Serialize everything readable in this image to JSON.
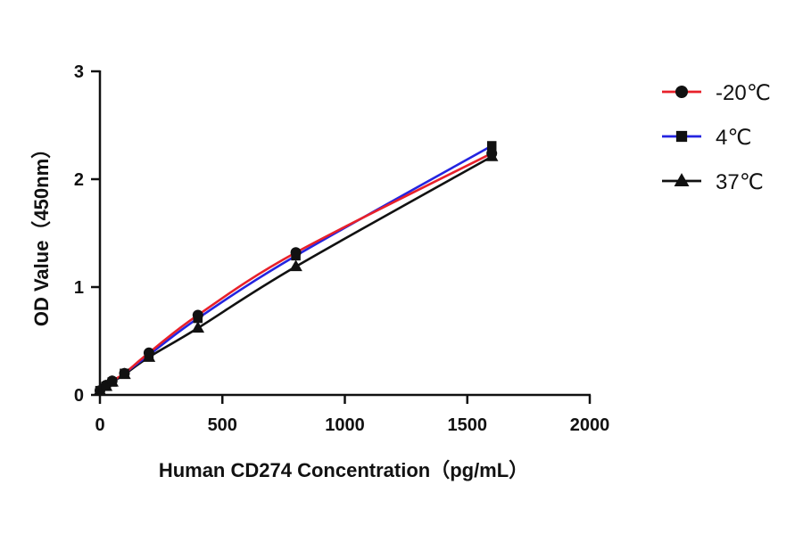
{
  "chart_data": {
    "type": "line",
    "title": "",
    "xlabel": "Human CD274 Concentration（pg/mL）",
    "ylabel": "OD Value（450nm）",
    "xlim": [
      0,
      2000
    ],
    "ylim": [
      0,
      3
    ],
    "x_ticks": [
      0,
      500,
      1000,
      1500,
      2000
    ],
    "y_ticks": [
      0,
      1,
      2,
      3
    ],
    "x_tick_labels": [
      "0",
      "500",
      "1000",
      "1500",
      "2000"
    ],
    "y_tick_labels": [
      "0",
      "1",
      "2",
      "3"
    ],
    "grid": false,
    "legend_position": "right",
    "x": [
      0,
      25,
      50,
      100,
      200,
      400,
      800,
      1600
    ],
    "series": [
      {
        "name": "-20℃",
        "marker": "circle",
        "color": "#e8202a",
        "values": [
          0.04,
          0.09,
          0.13,
          0.2,
          0.39,
          0.74,
          1.32,
          2.24
        ]
      },
      {
        "name": "4℃",
        "marker": "square",
        "color": "#2424e0",
        "values": [
          0.04,
          0.08,
          0.12,
          0.2,
          0.37,
          0.71,
          1.29,
          2.31
        ]
      },
      {
        "name": "37℃",
        "marker": "triangle",
        "color": "#111111",
        "values": [
          0.04,
          0.08,
          0.12,
          0.19,
          0.35,
          0.62,
          1.19,
          2.21
        ]
      }
    ]
  }
}
